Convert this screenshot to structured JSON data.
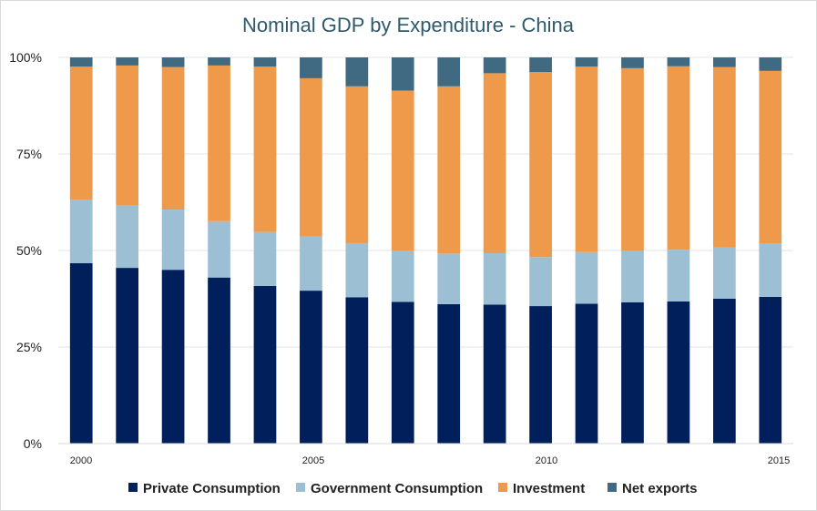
{
  "chart_data": {
    "type": "bar",
    "stacked": true,
    "title": "Nominal GDP by Expenditure - China",
    "xlabel": "",
    "ylabel": "",
    "ylim": [
      0,
      100
    ],
    "y_ticks": [
      "0%",
      "25%",
      "50%",
      "75%",
      "100%"
    ],
    "x_tick_labels": [
      "2000",
      "2005",
      "2010",
      "2015"
    ],
    "categories": [
      "2000",
      "2001",
      "2002",
      "2003",
      "2004",
      "2005",
      "2006",
      "2007",
      "2008",
      "2009",
      "2010",
      "2011",
      "2012",
      "2013",
      "2014",
      "2015"
    ],
    "series": [
      {
        "name": "Private Consumption",
        "color": "#001f5b",
        "values": [
          46.7,
          45.5,
          45.0,
          43.0,
          40.8,
          39.6,
          37.9,
          36.7,
          36.1,
          36.0,
          35.6,
          36.2,
          36.6,
          36.8,
          37.5,
          38.0
        ]
      },
      {
        "name": "Government Consumption",
        "color": "#9dbfd4",
        "values": [
          16.5,
          16.2,
          15.6,
          14.6,
          14.0,
          14.0,
          14.0,
          13.3,
          13.1,
          13.3,
          12.7,
          13.4,
          13.4,
          13.4,
          13.3,
          13.8
        ]
      },
      {
        "name": "Investment",
        "color": "#ee9a4a",
        "values": [
          34.4,
          36.2,
          36.9,
          40.3,
          42.8,
          41.0,
          40.6,
          41.4,
          43.3,
          46.6,
          47.9,
          48.0,
          47.2,
          47.5,
          46.7,
          44.7
        ]
      },
      {
        "name": "Net exports",
        "color": "#3f6a82",
        "values": [
          2.4,
          2.1,
          2.5,
          2.1,
          2.4,
          5.4,
          7.5,
          8.6,
          7.5,
          4.1,
          3.8,
          2.4,
          2.8,
          2.3,
          2.5,
          3.5
        ]
      }
    ],
    "legend_position": "bottom"
  }
}
